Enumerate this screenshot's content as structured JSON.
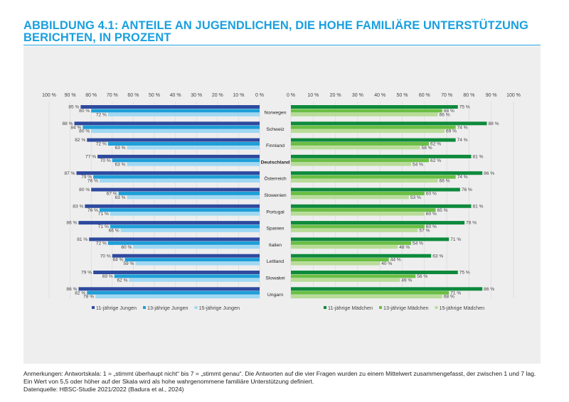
{
  "header": {
    "title_line1": "ABBILDUNG 4.1: ANTEILE AN JUGENDLICHEN, DIE HOHE FAMILIÄRE UNTERSTÜTZUNG",
    "title_line2": "BERICHTEN, IN PROZENT"
  },
  "footer": {
    "note": "Anmerkungen: Antwortskala: 1 = „stimmt überhaupt nicht“ bis 7 = „stimmt genau“. Die Antworten auf die vier Fragen wurden zu einem Mittelwert zusammengefasst, der zwischen 1 und 7 lag. Ein Wert von 5,5 oder höher auf der Skala wird als hohe wahrgenommene familiäre Unterstützung definiert.",
    "source": "Datenquelle: HBSC-Studie 2021/2022 (Badura et al., 2024)"
  },
  "chart_data": [
    {
      "type": "bar",
      "orientation": "horizontal",
      "direction": "right-to-left",
      "categories": [
        "Norwegen",
        "Schweiz",
        "Finnland",
        "Deutschland",
        "Österreich",
        "Slowenien",
        "Portugal",
        "Spanien",
        "Italien",
        "Lettland",
        "Slowakei",
        "Ungarn"
      ],
      "highlight_category": "Deutschland",
      "xlim": [
        0,
        100
      ],
      "tick_labels": [
        "100 %",
        "90 %",
        "80 %",
        "70 %",
        "60 %",
        "50 %",
        "40 %",
        "30 %",
        "20 %",
        "10 %",
        "0 %"
      ],
      "grid": true,
      "legend_position": "bottom",
      "series": [
        {
          "name": "11-jährige Jungen",
          "color": "#2e4a9e",
          "values": [
            85,
            88,
            82,
            77,
            87,
            80,
            83,
            86,
            81,
            70,
            79,
            86
          ]
        },
        {
          "name": "13-jährige Jungen",
          "color": "#1e9fd8",
          "values": [
            80,
            84,
            72,
            70,
            79,
            67,
            76,
            71,
            72,
            64,
            69,
            82
          ]
        },
        {
          "name": "15-jährige Jungen",
          "color": "#9fd8f2",
          "values": [
            72,
            80,
            63,
            63,
            76,
            63,
            71,
            66,
            60,
            59,
            62,
            78
          ]
        }
      ]
    },
    {
      "type": "bar",
      "orientation": "horizontal",
      "direction": "left-to-right",
      "categories": [
        "Norwegen",
        "Schweiz",
        "Finnland",
        "Deutschland",
        "Österreich",
        "Slowenien",
        "Portugal",
        "Spanien",
        "Italien",
        "Lettland",
        "Slowakei",
        "Ungarn"
      ],
      "xlim": [
        0,
        100
      ],
      "tick_labels": [
        "0 %",
        "10 %",
        "20 %",
        "30 %",
        "40 %",
        "50 %",
        "60 %",
        "70 %",
        "80 %",
        "90 %",
        "100 %"
      ],
      "grid": true,
      "legend_position": "bottom",
      "series": [
        {
          "name": "11-jährige Mädchen",
          "color": "#0e8a3c",
          "values": [
            75,
            88,
            74,
            81,
            86,
            76,
            81,
            78,
            71,
            63,
            75,
            86
          ]
        },
        {
          "name": "13-jährige Mädchen",
          "color": "#6bbf45",
          "values": [
            68,
            74,
            62,
            62,
            74,
            60,
            65,
            60,
            54,
            44,
            56,
            71
          ]
        },
        {
          "name": "15-jährige Mädchen",
          "color": "#b8dc98",
          "values": [
            66,
            69,
            58,
            54,
            66,
            53,
            60,
            57,
            48,
            40,
            49,
            68
          ]
        }
      ]
    }
  ]
}
